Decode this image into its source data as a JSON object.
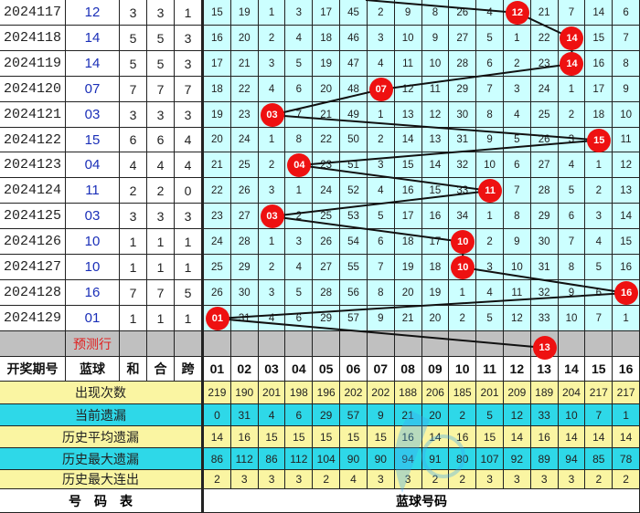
{
  "rows": [
    {
      "period": "2024117",
      "blue": "12",
      "he": "3",
      "hz": "3",
      "kua": "1",
      "cells": [
        "15",
        "19",
        "1",
        "3",
        "17",
        "45",
        "2",
        "9",
        "8",
        "26",
        "4",
        "12",
        "21",
        "7",
        "14",
        "6"
      ],
      "ball": 12
    },
    {
      "period": "2024118",
      "blue": "14",
      "he": "5",
      "hz": "5",
      "kua": "3",
      "cells": [
        "16",
        "20",
        "2",
        "4",
        "18",
        "46",
        "3",
        "10",
        "9",
        "27",
        "5",
        "1",
        "22",
        "14",
        "15",
        "7"
      ],
      "ball": 14
    },
    {
      "period": "2024119",
      "blue": "14",
      "he": "5",
      "hz": "5",
      "kua": "3",
      "cells": [
        "17",
        "21",
        "3",
        "5",
        "19",
        "47",
        "4",
        "11",
        "10",
        "28",
        "6",
        "2",
        "23",
        "14",
        "16",
        "8"
      ],
      "ball": 14
    },
    {
      "period": "2024120",
      "blue": "07",
      "he": "7",
      "hz": "7",
      "kua": "7",
      "cells": [
        "18",
        "22",
        "4",
        "6",
        "20",
        "48",
        "07",
        "12",
        "11",
        "29",
        "7",
        "3",
        "24",
        "1",
        "17",
        "9"
      ],
      "ball": 7
    },
    {
      "period": "2024121",
      "blue": "03",
      "he": "3",
      "hz": "3",
      "kua": "3",
      "cells": [
        "19",
        "23",
        "03",
        "7",
        "21",
        "49",
        "1",
        "13",
        "12",
        "30",
        "8",
        "4",
        "25",
        "2",
        "18",
        "10"
      ],
      "ball": 3
    },
    {
      "period": "2024122",
      "blue": "15",
      "he": "6",
      "hz": "6",
      "kua": "4",
      "cells": [
        "20",
        "24",
        "1",
        "8",
        "22",
        "50",
        "2",
        "14",
        "13",
        "31",
        "9",
        "5",
        "26",
        "3",
        "15",
        "11"
      ],
      "ball": 15
    },
    {
      "period": "2024123",
      "blue": "04",
      "he": "4",
      "hz": "4",
      "kua": "4",
      "cells": [
        "21",
        "25",
        "2",
        "04",
        "23",
        "51",
        "3",
        "15",
        "14",
        "32",
        "10",
        "6",
        "27",
        "4",
        "1",
        "12"
      ],
      "ball": 4
    },
    {
      "period": "2024124",
      "blue": "11",
      "he": "2",
      "hz": "2",
      "kua": "0",
      "cells": [
        "22",
        "26",
        "3",
        "1",
        "24",
        "52",
        "4",
        "16",
        "15",
        "33",
        "11",
        "7",
        "28",
        "5",
        "2",
        "13"
      ],
      "ball": 11
    },
    {
      "period": "2024125",
      "blue": "03",
      "he": "3",
      "hz": "3",
      "kua": "3",
      "cells": [
        "23",
        "27",
        "03",
        "2",
        "25",
        "53",
        "5",
        "17",
        "16",
        "34",
        "1",
        "8",
        "29",
        "6",
        "3",
        "14"
      ],
      "ball": 3
    },
    {
      "period": "2024126",
      "blue": "10",
      "he": "1",
      "hz": "1",
      "kua": "1",
      "cells": [
        "24",
        "28",
        "1",
        "3",
        "26",
        "54",
        "6",
        "18",
        "17",
        "10",
        "2",
        "9",
        "30",
        "7",
        "4",
        "15"
      ],
      "ball": 10
    },
    {
      "period": "2024127",
      "blue": "10",
      "he": "1",
      "hz": "1",
      "kua": "1",
      "cells": [
        "25",
        "29",
        "2",
        "4",
        "27",
        "55",
        "7",
        "19",
        "18",
        "10",
        "3",
        "10",
        "31",
        "8",
        "5",
        "16"
      ],
      "ball": 10
    },
    {
      "period": "2024128",
      "blue": "16",
      "he": "7",
      "hz": "7",
      "kua": "5",
      "cells": [
        "26",
        "30",
        "3",
        "5",
        "28",
        "56",
        "8",
        "20",
        "19",
        "1",
        "4",
        "11",
        "32",
        "9",
        "6",
        "16"
      ],
      "ball": 16
    },
    {
      "period": "2024129",
      "blue": "01",
      "he": "1",
      "hz": "1",
      "kua": "1",
      "cells": [
        "01",
        "31",
        "4",
        "6",
        "29",
        "57",
        "9",
        "21",
        "20",
        "2",
        "5",
        "12",
        "33",
        "10",
        "7",
        "1"
      ],
      "ball": 1
    }
  ],
  "prediction": {
    "label": "预测行",
    "ball": 13,
    "ball_label": "13"
  },
  "header": {
    "period": "开奖期号",
    "blue": "蓝球",
    "he": "和",
    "hz": "合",
    "kua": "跨",
    "numbers": [
      "01",
      "02",
      "03",
      "04",
      "05",
      "06",
      "07",
      "08",
      "09",
      "10",
      "11",
      "12",
      "13",
      "14",
      "15",
      "16"
    ]
  },
  "stats": [
    {
      "label": "出现次数",
      "color": "yellow",
      "values": [
        "219",
        "190",
        "201",
        "198",
        "196",
        "202",
        "202",
        "188",
        "206",
        "185",
        "201",
        "209",
        "189",
        "204",
        "217",
        "217"
      ]
    },
    {
      "label": "当前遗漏",
      "color": "cyan",
      "values": [
        "0",
        "31",
        "4",
        "6",
        "29",
        "57",
        "9",
        "21",
        "20",
        "2",
        "5",
        "12",
        "33",
        "10",
        "7",
        "1"
      ]
    },
    {
      "label": "历史平均遗漏",
      "color": "yellow",
      "values": [
        "14",
        "16",
        "15",
        "15",
        "15",
        "15",
        "15",
        "16",
        "14",
        "16",
        "15",
        "14",
        "16",
        "14",
        "14",
        "14"
      ]
    },
    {
      "label": "历史最大遗漏",
      "color": "cyan",
      "values": [
        "86",
        "112",
        "86",
        "112",
        "104",
        "90",
        "90",
        "94",
        "91",
        "80",
        "107",
        "92",
        "89",
        "94",
        "85",
        "78"
      ]
    },
    {
      "label": "历史最大连出",
      "color": "yellow",
      "values": [
        "2",
        "3",
        "3",
        "3",
        "2",
        "4",
        "3",
        "3",
        "2",
        "2",
        "3",
        "3",
        "3",
        "3",
        "2",
        "2"
      ]
    }
  ],
  "footer": {
    "left": "号　码　表",
    "right": "蓝球号码"
  },
  "watermark": {
    "text": "开云体育",
    "url": "kaiyun.com"
  },
  "colors": {
    "ball": "#ee1111",
    "grid": "#ccffff",
    "yellow": "#faf5a2",
    "cyan": "#2ed8e8",
    "blue_text": "#1a2fb8",
    "predict": "#c0c0c0"
  }
}
